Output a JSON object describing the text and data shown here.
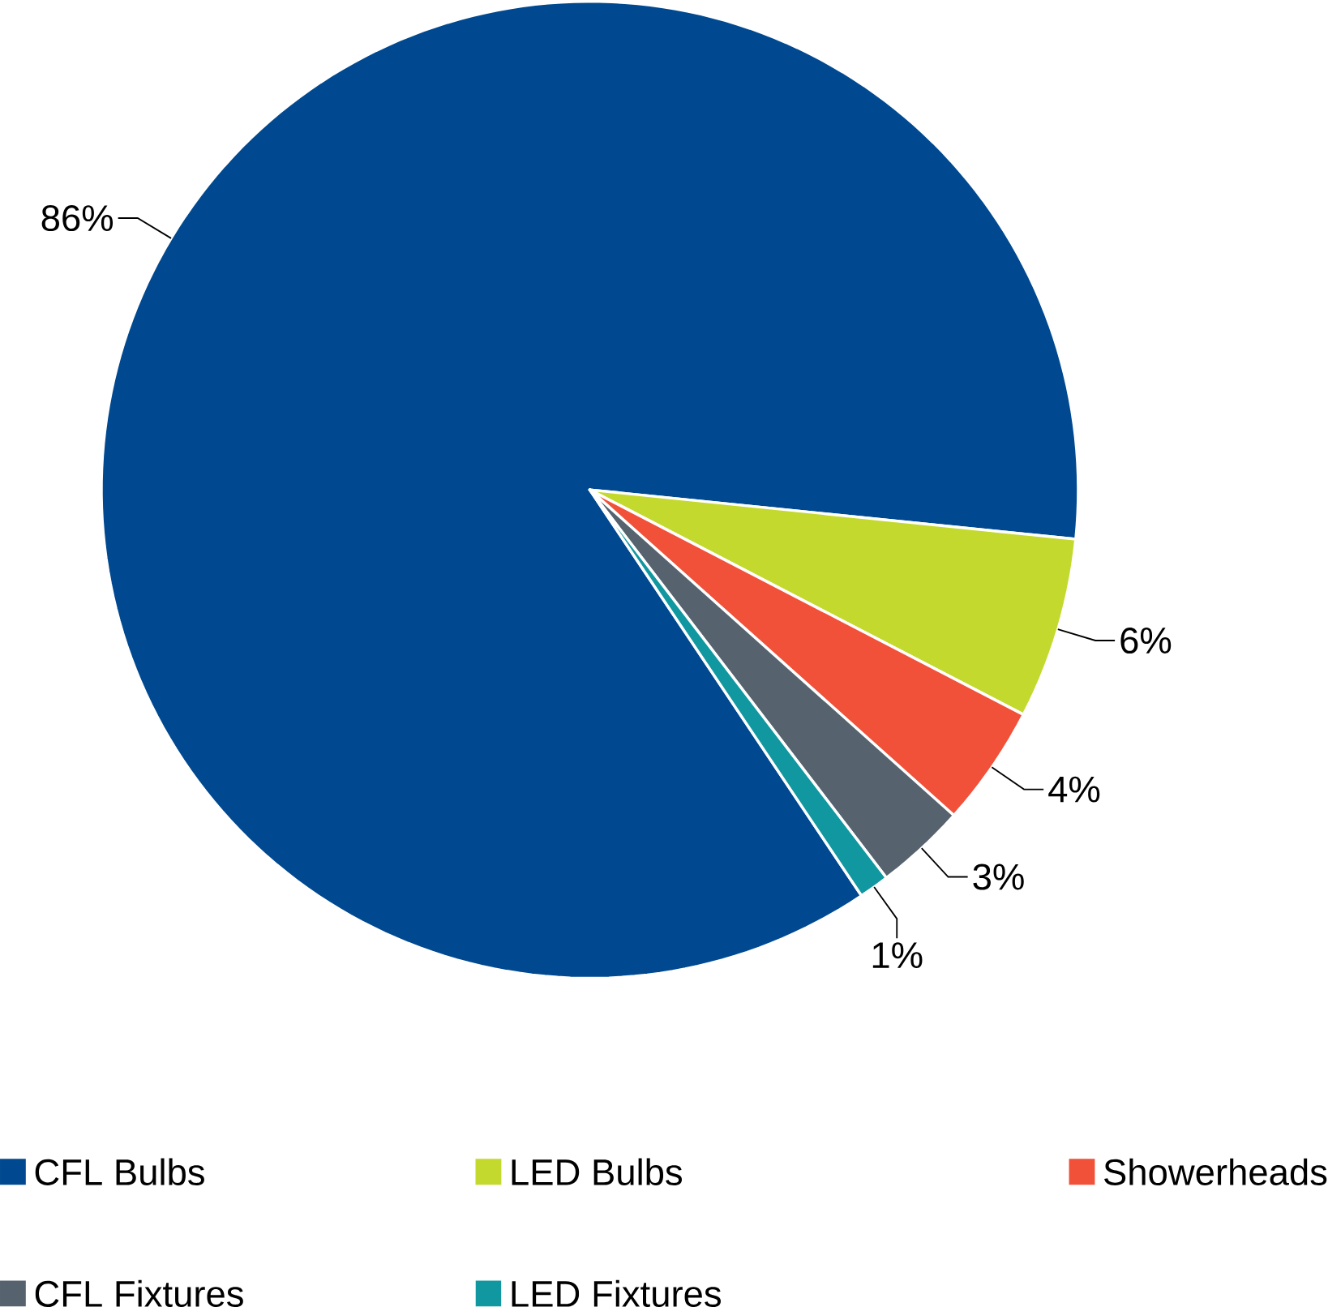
{
  "chart_data": {
    "type": "pie",
    "categories": [
      "CFL Bulbs",
      "LED Bulbs",
      "Showerheads",
      "CFL Fixtures",
      "LED Fixtures"
    ],
    "values": [
      86,
      6,
      4,
      3,
      1
    ],
    "colors": [
      "#004990",
      "#c3d92e",
      "#f15139",
      "#56636e",
      "#1097a0"
    ],
    "value_labels": [
      "86%",
      "6%",
      "4%",
      "3%",
      "1%"
    ],
    "legend": "bottom"
  }
}
